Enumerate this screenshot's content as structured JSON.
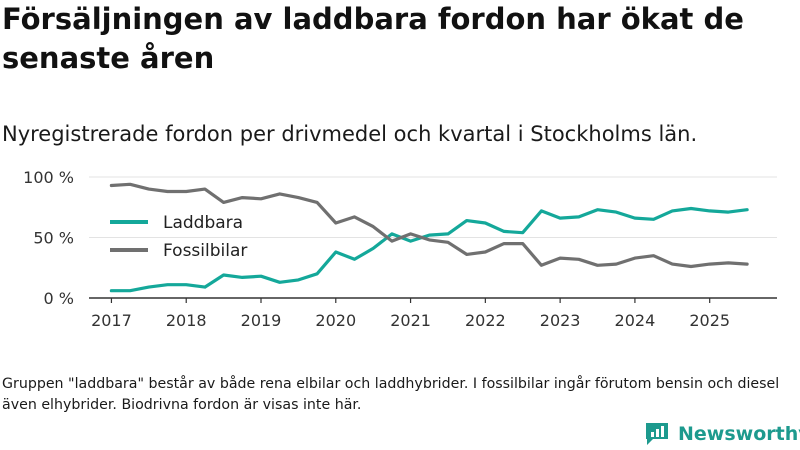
{
  "title": "Försäljningen av laddbara fordon har ökat de senaste åren",
  "subtitle": "Nyregistrerade fordon per drivmedel och kvartal i Stockholms län.",
  "note": "Gruppen \"laddbara\" består av både rena elbilar och laddhybrider. I fossilbilar ingår förutom bensin och diesel även elhybrider. Biodrivna fordon är visas inte här.",
  "brand": {
    "name": "Newsworthy",
    "icon": "newsworthy-logo-icon",
    "color": "#1d9a8e"
  },
  "chart_data": {
    "type": "line",
    "title": "Försäljningen av laddbara fordon har ökat de senaste åren",
    "xlabel": "",
    "ylabel": "",
    "x": [
      2017.0,
      2017.25,
      2017.5,
      2017.75,
      2018.0,
      2018.25,
      2018.5,
      2018.75,
      2019.0,
      2019.25,
      2019.5,
      2019.75,
      2020.0,
      2020.25,
      2020.5,
      2020.75,
      2021.0,
      2021.25,
      2021.5,
      2021.75,
      2022.0,
      2022.25,
      2022.5,
      2022.75,
      2023.0,
      2023.25,
      2023.5,
      2023.75,
      2024.0,
      2024.25,
      2024.5,
      2024.75,
      2025.0,
      2025.25,
      2025.5
    ],
    "xlim": [
      2016.7,
      2025.9
    ],
    "ylim": [
      0,
      100
    ],
    "xticks": [
      2017,
      2018,
      2019,
      2020,
      2021,
      2022,
      2023,
      2024,
      2025
    ],
    "xtick_labels": [
      "2017",
      "2018",
      "2019",
      "2020",
      "2021",
      "2022",
      "2023",
      "2024",
      "2025"
    ],
    "yticks": [
      0,
      50,
      100
    ],
    "ytick_labels": [
      "0 %",
      "50 %",
      "100 %"
    ],
    "grid": true,
    "legend_position": "left",
    "series": [
      {
        "name": "Laddbara",
        "color": "#14a89a",
        "values": [
          6,
          6,
          9,
          11,
          11,
          9,
          19,
          17,
          18,
          13,
          15,
          20,
          38,
          32,
          41,
          53,
          47,
          52,
          53,
          64,
          62,
          55,
          54,
          72,
          66,
          67,
          73,
          71,
          66,
          65,
          72,
          74,
          72,
          71,
          73
        ]
      },
      {
        "name": "Fossilbilar",
        "color": "#707070",
        "values": [
          93,
          94,
          90,
          88,
          88,
          90,
          79,
          83,
          82,
          86,
          83,
          79,
          62,
          67,
          59,
          47,
          53,
          48,
          46,
          36,
          38,
          45,
          45,
          27,
          33,
          32,
          27,
          28,
          33,
          35,
          28,
          26,
          28,
          29,
          28
        ]
      }
    ]
  }
}
